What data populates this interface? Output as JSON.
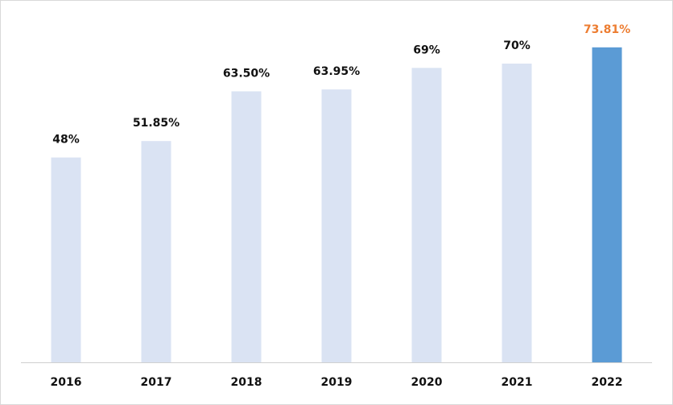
{
  "chart_data": {
    "type": "bar",
    "categories": [
      "2016",
      "2017",
      "2018",
      "2019",
      "2020",
      "2021",
      "2022"
    ],
    "values": [
      48,
      51.85,
      63.5,
      63.95,
      69,
      70,
      73.81
    ],
    "value_labels": [
      "48%",
      "51.85%",
      "63.50%",
      "63.95%",
      "69%",
      "70%",
      "73.81%"
    ],
    "colors": [
      "#dae3f3",
      "#dae3f3",
      "#dae3f3",
      "#dae3f3",
      "#dae3f3",
      "#dae3f3",
      "#5b9bd5"
    ],
    "value_label_colors": [
      "#111111",
      "#111111",
      "#111111",
      "#111111",
      "#111111",
      "#111111",
      "#ed7d31"
    ]
  }
}
